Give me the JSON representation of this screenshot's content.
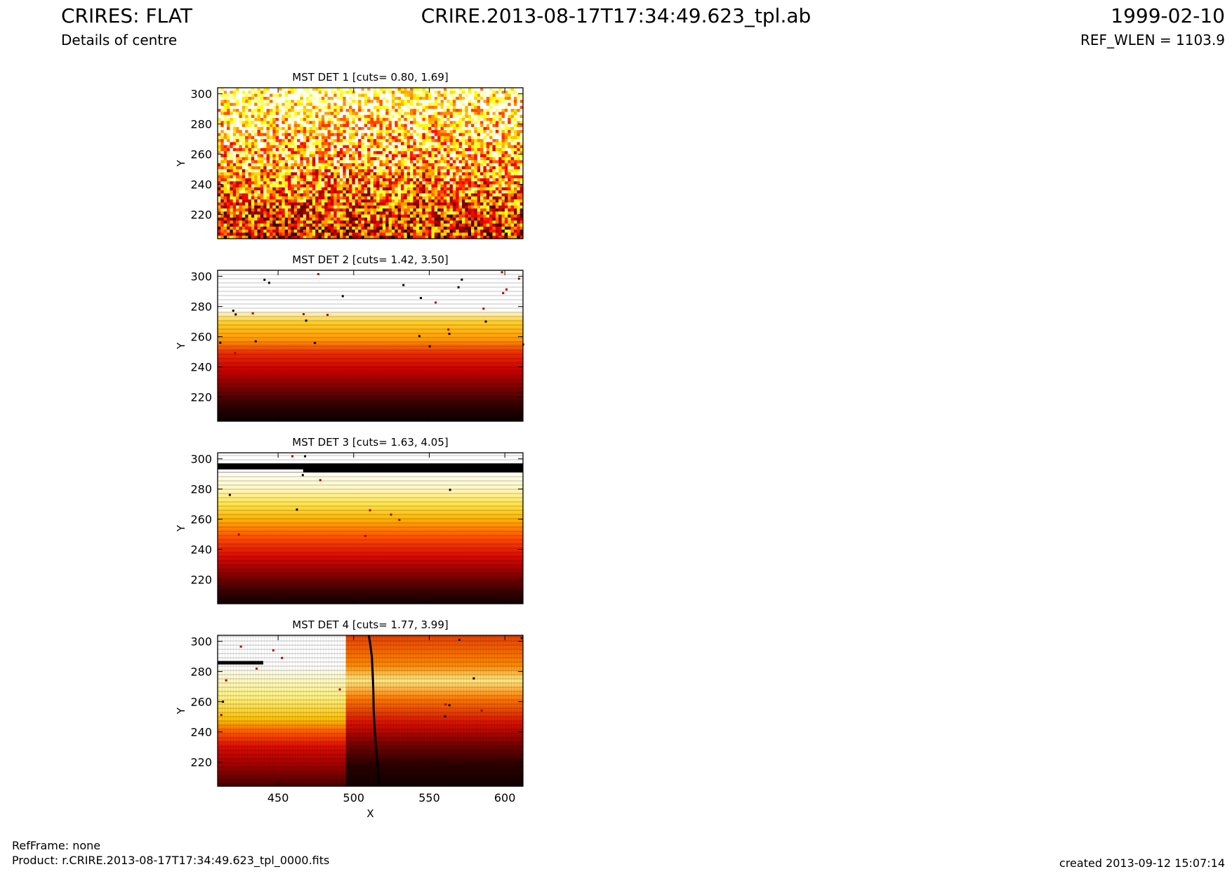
{
  "header": {
    "title": "CRIRES: FLAT",
    "file": "CRIRE.2013-08-17T17:34:49.623_tpl.ab",
    "date": "1999-02-10",
    "subtitle": "Details of centre",
    "ref_wlen": "REF_WLEN = 1103.9"
  },
  "footer": {
    "ref_frame": "RefFrame: none",
    "product": "Product: r.CRIRE.2013-08-17T17:34:49.623_tpl_0000.fits",
    "created": "created 2013-09-12 15:07:14"
  },
  "chart_data": [
    {
      "type": "heatmap",
      "title": "MST DET 1 [cuts= 0.80, 1.69]",
      "ylabel": "Y",
      "xlim": [
        410,
        612
      ],
      "ylim": [
        204,
        304
      ],
      "yticks": [
        220,
        240,
        260,
        280,
        300
      ],
      "colormap": "hot",
      "cuts": [
        0.8,
        1.69
      ]
    },
    {
      "type": "heatmap",
      "title": "MST DET 2 [cuts= 1.42, 3.50]",
      "ylabel": "Y",
      "xlim": [
        410,
        612
      ],
      "ylim": [
        204,
        304
      ],
      "yticks": [
        220,
        240,
        260,
        280,
        300
      ],
      "colormap": "hot",
      "cuts": [
        1.42,
        3.5
      ]
    },
    {
      "type": "heatmap",
      "title": "MST DET 3 [cuts= 1.63, 4.05]",
      "ylabel": "Y",
      "xlim": [
        410,
        612
      ],
      "ylim": [
        204,
        304
      ],
      "yticks": [
        220,
        240,
        260,
        280,
        300
      ],
      "colormap": "hot",
      "cuts": [
        1.63,
        4.05
      ]
    },
    {
      "type": "heatmap",
      "title": "MST DET 4 [cuts= 1.77, 3.99]",
      "ylabel": "Y",
      "xlabel": "X",
      "xlim": [
        410,
        612
      ],
      "ylim": [
        204,
        304
      ],
      "xticks": [
        450,
        500,
        550,
        600
      ],
      "yticks": [
        220,
        240,
        260,
        280,
        300
      ],
      "colormap": "hot",
      "cuts": [
        1.77,
        3.99
      ]
    }
  ]
}
